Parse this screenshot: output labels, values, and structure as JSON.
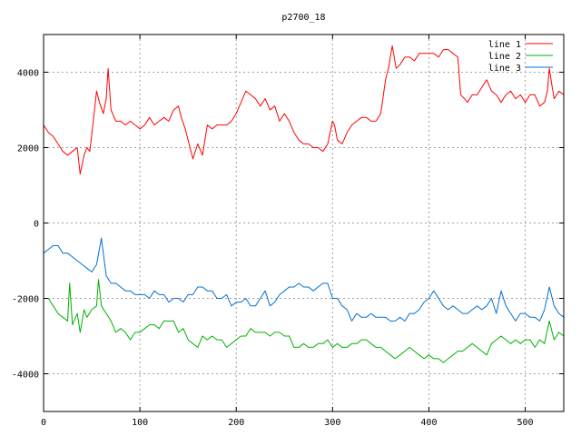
{
  "chart_data": {
    "type": "line",
    "title": "p2700_18",
    "xlabel": "",
    "ylabel": "",
    "xlim": [
      0,
      540
    ],
    "ylim": [
      -5000,
      5000
    ],
    "x_ticks": [
      0,
      100,
      200,
      300,
      400,
      500
    ],
    "y_ticks": [
      -4000,
      -2000,
      0,
      2000,
      4000
    ],
    "grid": true,
    "legend_position": "top-right",
    "series": [
      {
        "name": "line 1",
        "color": "#ff0000",
        "x": [
          0,
          5,
          10,
          15,
          20,
          25,
          30,
          35,
          38,
          42,
          45,
          48,
          52,
          55,
          58,
          62,
          65,
          67,
          70,
          75,
          80,
          85,
          90,
          95,
          100,
          105,
          110,
          115,
          120,
          125,
          130,
          135,
          140,
          143,
          147,
          150,
          155,
          160,
          165,
          170,
          175,
          180,
          185,
          190,
          195,
          200,
          205,
          210,
          215,
          220,
          225,
          230,
          235,
          240,
          245,
          250,
          255,
          260,
          265,
          270,
          275,
          280,
          285,
          290,
          295,
          300,
          302,
          305,
          310,
          315,
          320,
          325,
          330,
          335,
          340,
          345,
          350,
          355,
          358,
          362,
          366,
          370,
          375,
          380,
          385,
          390,
          395,
          400,
          405,
          410,
          415,
          420,
          425,
          430,
          433,
          437,
          440,
          445,
          450,
          455,
          460,
          465,
          470,
          475,
          480,
          485,
          490,
          495,
          500,
          505,
          510,
          515,
          520,
          523,
          525,
          528,
          530,
          535,
          540
        ],
        "y": [
          2600,
          2400,
          2300,
          2100,
          1900,
          1800,
          1900,
          2000,
          1300,
          1800,
          2000,
          1900,
          2800,
          3500,
          3200,
          2900,
          3300,
          4100,
          3000,
          2700,
          2700,
          2600,
          2700,
          2600,
          2500,
          2600,
          2800,
          2600,
          2700,
          2800,
          2700,
          3000,
          3100,
          2800,
          2500,
          2200,
          1700,
          2100,
          1800,
          2600,
          2500,
          2600,
          2600,
          2600,
          2700,
          2900,
          3200,
          3500,
          3400,
          3300,
          3100,
          3300,
          3000,
          3100,
          2700,
          2900,
          2700,
          2400,
          2200,
          2100,
          2100,
          2000,
          2000,
          1900,
          2100,
          2700,
          2600,
          2200,
          2100,
          2400,
          2600,
          2700,
          2800,
          2800,
          2700,
          2700,
          2900,
          3800,
          4100,
          4700,
          4100,
          4200,
          4400,
          4400,
          4300,
          4500,
          4500,
          4500,
          4500,
          4400,
          4600,
          4600,
          4500,
          4400,
          3400,
          3300,
          3200,
          3400,
          3400,
          3600,
          3800,
          3500,
          3400,
          3200,
          3400,
          3500,
          3300,
          3400,
          3200,
          3400,
          3400,
          3100,
          3200,
          3500,
          4100,
          3600,
          3300,
          3500,
          3400
        ]
      },
      {
        "name": "line 2",
        "color": "#00b000",
        "x": [
          0,
          5,
          10,
          15,
          20,
          25,
          27,
          30,
          35,
          38,
          42,
          45,
          50,
          55,
          57,
          60,
          65,
          70,
          75,
          80,
          85,
          90,
          95,
          100,
          105,
          110,
          115,
          120,
          125,
          130,
          135,
          140,
          145,
          150,
          155,
          160,
          165,
          170,
          175,
          180,
          185,
          190,
          195,
          200,
          205,
          210,
          215,
          220,
          225,
          230,
          235,
          240,
          245,
          250,
          255,
          260,
          265,
          270,
          275,
          280,
          285,
          290,
          295,
          300,
          305,
          310,
          315,
          320,
          325,
          330,
          335,
          340,
          345,
          350,
          355,
          360,
          365,
          370,
          375,
          380,
          385,
          390,
          395,
          400,
          405,
          410,
          415,
          420,
          425,
          430,
          435,
          440,
          445,
          450,
          455,
          460,
          465,
          470,
          475,
          480,
          485,
          490,
          495,
          500,
          505,
          510,
          515,
          520,
          525,
          530,
          535,
          540
        ],
        "y": [
          -2000,
          -2000,
          -2200,
          -2400,
          -2500,
          -2600,
          -1600,
          -2700,
          -2400,
          -2900,
          -2300,
          -2500,
          -2300,
          -2200,
          -1500,
          -2200,
          -2400,
          -2600,
          -2900,
          -2800,
          -2900,
          -3100,
          -2900,
          -2900,
          -2800,
          -2700,
          -2700,
          -2800,
          -2600,
          -2600,
          -2600,
          -2900,
          -2800,
          -3100,
          -3200,
          -3300,
          -3000,
          -3100,
          -3000,
          -3100,
          -3100,
          -3300,
          -3200,
          -3100,
          -3000,
          -3000,
          -2800,
          -2900,
          -2900,
          -2900,
          -3000,
          -2900,
          -2900,
          -3000,
          -3000,
          -3300,
          -3300,
          -3200,
          -3300,
          -3300,
          -3200,
          -3200,
          -3100,
          -3300,
          -3200,
          -3300,
          -3300,
          -3200,
          -3200,
          -3100,
          -3100,
          -3200,
          -3300,
          -3300,
          -3400,
          -3500,
          -3600,
          -3500,
          -3400,
          -3300,
          -3400,
          -3500,
          -3600,
          -3500,
          -3600,
          -3600,
          -3700,
          -3600,
          -3500,
          -3400,
          -3400,
          -3300,
          -3200,
          -3300,
          -3400,
          -3500,
          -3200,
          -3100,
          -3000,
          -3100,
          -3200,
          -3100,
          -3200,
          -3100,
          -3100,
          -3300,
          -3100,
          -3200,
          -2600,
          -3100,
          -2900,
          -3000
        ]
      },
      {
        "name": "line 3",
        "color": "#0070d0",
        "x": [
          0,
          5,
          10,
          15,
          20,
          25,
          30,
          35,
          40,
          45,
          50,
          55,
          60,
          65,
          70,
          75,
          80,
          85,
          90,
          95,
          100,
          105,
          110,
          115,
          120,
          125,
          130,
          135,
          140,
          145,
          150,
          155,
          160,
          165,
          170,
          175,
          180,
          185,
          190,
          195,
          200,
          205,
          210,
          215,
          220,
          225,
          230,
          235,
          240,
          245,
          250,
          255,
          260,
          265,
          270,
          275,
          280,
          285,
          290,
          295,
          300,
          305,
          310,
          315,
          320,
          325,
          330,
          335,
          340,
          345,
          350,
          355,
          360,
          365,
          370,
          375,
          380,
          385,
          390,
          395,
          400,
          405,
          410,
          415,
          420,
          425,
          430,
          435,
          440,
          445,
          450,
          455,
          460,
          465,
          470,
          475,
          480,
          485,
          490,
          495,
          500,
          505,
          510,
          515,
          520,
          525,
          530,
          535,
          540
        ],
        "y": [
          -800,
          -700,
          -600,
          -600,
          -800,
          -800,
          -900,
          -1000,
          -1100,
          -1200,
          -1300,
          -1100,
          -400,
          -1400,
          -1600,
          -1600,
          -1700,
          -1800,
          -1800,
          -1900,
          -1900,
          -1900,
          -2000,
          -1800,
          -1900,
          -1900,
          -2100,
          -2000,
          -2000,
          -2100,
          -1900,
          -1900,
          -1700,
          -1700,
          -1800,
          -1800,
          -2000,
          -2000,
          -1900,
          -2200,
          -2100,
          -2100,
          -2000,
          -2200,
          -2200,
          -2000,
          -1800,
          -2200,
          -2100,
          -1900,
          -1800,
          -1700,
          -1700,
          -1600,
          -1700,
          -1700,
          -1800,
          -1700,
          -1600,
          -1600,
          -2000,
          -2000,
          -2200,
          -2300,
          -2600,
          -2400,
          -2500,
          -2500,
          -2400,
          -2500,
          -2500,
          -2500,
          -2600,
          -2600,
          -2500,
          -2600,
          -2400,
          -2400,
          -2300,
          -2100,
          -2000,
          -1800,
          -2000,
          -2200,
          -2300,
          -2200,
          -2300,
          -2400,
          -2400,
          -2300,
          -2200,
          -2300,
          -2200,
          -2000,
          -2400,
          -1800,
          -2200,
          -2400,
          -2600,
          -2400,
          -2400,
          -2500,
          -2500,
          -2600,
          -2300,
          -1700,
          -2200,
          -2400,
          -2500
        ]
      }
    ]
  }
}
